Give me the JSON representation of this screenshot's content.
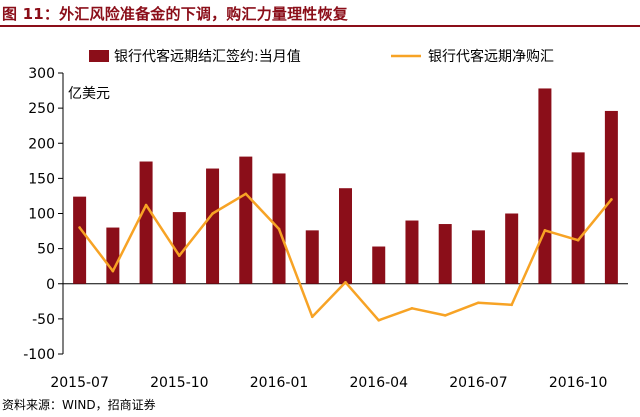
{
  "header": {
    "title": "图 11：外汇风险准备金的下调，购汇力量理性恢复"
  },
  "source": "资料来源：WIND，招商证券",
  "colors": {
    "title": "#8b0e19",
    "bar": "#8b0e19",
    "line": "#f7a325"
  },
  "chart_data": {
    "type": "bar",
    "unit_label": "亿美元",
    "ylim": [
      -100,
      300
    ],
    "yticks": [
      -100,
      -50,
      0,
      50,
      100,
      150,
      200,
      250,
      300
    ],
    "xtick_labels": [
      "2015-07",
      "2015-10",
      "2016-01",
      "2016-04",
      "2016-07",
      "2016-10"
    ],
    "grid": false,
    "legend": "top",
    "categories": [
      "2015-07",
      "2015-08",
      "2015-09",
      "2015-10",
      "2015-11",
      "2015-12",
      "2016-01",
      "2016-02",
      "2016-03",
      "2016-04",
      "2016-05",
      "2016-06",
      "2016-07",
      "2016-08",
      "2016-09",
      "2016-10",
      "2016-11"
    ],
    "series": [
      {
        "name": "银行代客远期结汇签约:当月值",
        "type": "bar",
        "values": [
          124,
          80,
          174,
          102,
          164,
          181,
          157,
          76,
          136,
          53,
          90,
          85,
          76,
          100,
          278,
          187,
          246
        ]
      },
      {
        "name": "银行代客远期净购汇",
        "type": "line",
        "values": [
          80,
          18,
          112,
          40,
          100,
          128,
          78,
          -47,
          2,
          -52,
          -35,
          -45,
          -27,
          -30,
          76,
          62,
          120
        ]
      }
    ]
  }
}
